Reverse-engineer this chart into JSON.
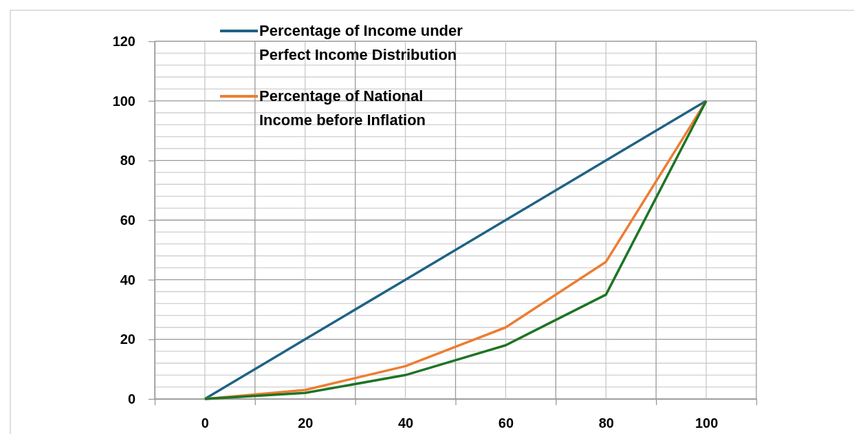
{
  "chart_data": {
    "type": "line",
    "x": [
      0,
      20,
      40,
      60,
      80,
      100
    ],
    "xlim": [
      -10,
      110
    ],
    "xticks": [
      {
        "value": -10,
        "label": null
      },
      0,
      {
        "value": 10,
        "label": null
      },
      20,
      {
        "value": 30,
        "label": null
      },
      40,
      {
        "value": 50,
        "label": null
      },
      60,
      {
        "value": 70,
        "label": null
      },
      80,
      {
        "value": 90,
        "label": null
      },
      100,
      {
        "value": 110,
        "label": null
      }
    ],
    "ylim": [
      0,
      120
    ],
    "yticks": [
      0,
      {
        "value": 4,
        "label": null
      },
      {
        "value": 8,
        "label": null
      },
      {
        "value": 12,
        "label": null
      },
      {
        "value": 16,
        "label": null
      },
      20,
      {
        "value": 24,
        "label": null
      },
      {
        "value": 28,
        "label": null
      },
      {
        "value": 32,
        "label": null
      },
      {
        "value": 36,
        "label": null
      },
      40,
      {
        "value": 44,
        "label": null
      },
      {
        "value": 48,
        "label": null
      },
      {
        "value": 52,
        "label": null
      },
      {
        "value": 56,
        "label": null
      },
      60,
      {
        "value": 64,
        "label": null
      },
      {
        "value": 68,
        "label": null
      },
      {
        "value": 72,
        "label": null
      },
      {
        "value": 76,
        "label": null
      },
      80,
      {
        "value": 84,
        "label": null
      },
      {
        "value": 88,
        "label": null
      },
      {
        "value": 92,
        "label": null
      },
      {
        "value": 96,
        "label": null
      },
      100,
      {
        "value": 104,
        "label": null
      },
      {
        "value": 108,
        "label": null
      },
      {
        "value": 112,
        "label": null
      },
      {
        "value": 116,
        "label": null
      },
      120
    ],
    "grid": true,
    "legend": "top left",
    "marker": "none",
    "line_style": "solid",
    "series": [
      {
        "name": "Percentage of Income under Perfect Income Distribution",
        "color": "#1f6384",
        "values": [
          0,
          20,
          40,
          60,
          80,
          100
        ]
      },
      {
        "name": "Percentage of National Income before Inflation",
        "color": "#ed7d31",
        "values": [
          0,
          3,
          11,
          24,
          46,
          100
        ]
      },
      {
        "color": "#1e7424",
        "values": [
          0,
          2,
          8,
          18,
          35,
          100
        ]
      }
    ]
  }
}
